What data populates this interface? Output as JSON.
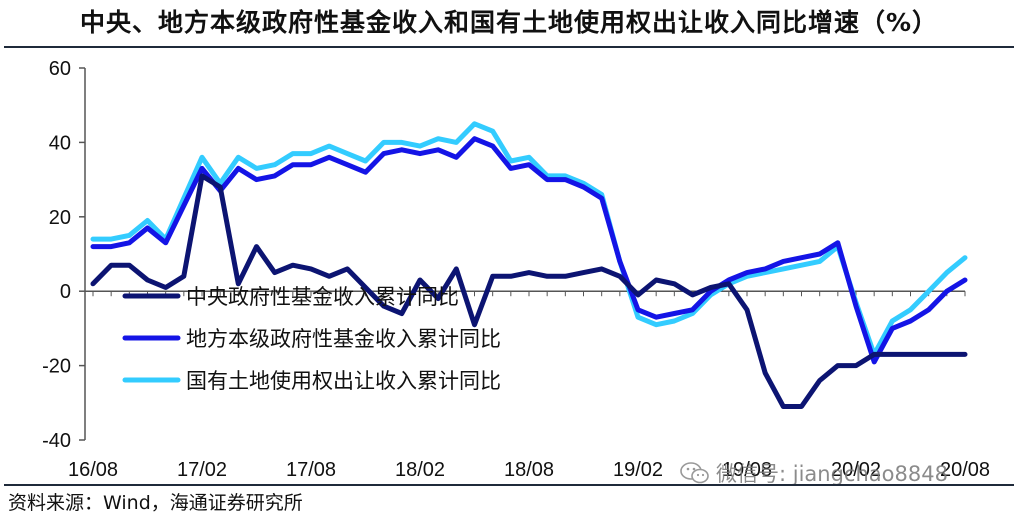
{
  "title": "中央、地方本级政府性基金收入和国有土地使用权出让收入同比增速（%）",
  "source": "资料来源：Wind，海通证券研究所",
  "watermark": "微信号: jiangchao8848",
  "chart_data": {
    "type": "line",
    "ylim": [
      -40,
      60
    ],
    "yticks": [
      60,
      40,
      20,
      0,
      -20,
      -40
    ],
    "xticks": [
      "16/08",
      "17/02",
      "17/08",
      "18/02",
      "18/08",
      "19/02",
      "19/08",
      "20/02",
      "20/08"
    ],
    "x": [
      "16/08",
      "16/09",
      "16/10",
      "16/11",
      "16/12",
      "17/01",
      "17/02",
      "17/03",
      "17/04",
      "17/05",
      "17/06",
      "17/07",
      "17/08",
      "17/09",
      "17/10",
      "17/11",
      "17/12",
      "18/01",
      "18/02",
      "18/03",
      "18/04",
      "18/05",
      "18/06",
      "18/07",
      "18/08",
      "18/09",
      "18/10",
      "18/11",
      "18/12",
      "19/01",
      "19/02",
      "19/03",
      "19/04",
      "19/05",
      "19/06",
      "19/07",
      "19/08",
      "19/09",
      "19/10",
      "19/11",
      "19/12",
      "20/01",
      "20/02",
      "20/03",
      "20/04",
      "20/05",
      "20/06",
      "20/07",
      "20/08"
    ],
    "legend_position": "bottom-left-inside",
    "series": [
      {
        "name": "中央政府性基金收入累计同比",
        "color": "#0c1472",
        "values": [
          2,
          7,
          7,
          3,
          1,
          4,
          31,
          28,
          2,
          12,
          5,
          7,
          6,
          4,
          6,
          1,
          -4,
          -6,
          3,
          -2,
          6,
          -9,
          4,
          4,
          5,
          4,
          4,
          5,
          6,
          4,
          -1,
          3,
          2,
          -1,
          1,
          2,
          -5,
          -22,
          -31,
          -31,
          -24,
          -20,
          -20,
          -17,
          -17,
          -17,
          -17,
          -17,
          -17
        ]
      },
      {
        "name": "地方本级政府性基金收入累计同比",
        "color": "#1414e6",
        "values": [
          12,
          12,
          13,
          17,
          13,
          23,
          33,
          27,
          33,
          30,
          31,
          34,
          34,
          36,
          34,
          32,
          37,
          38,
          37,
          38,
          36,
          41,
          39,
          33,
          34,
          30,
          30,
          28,
          25,
          8,
          -5,
          -7,
          -6,
          -5,
          0,
          3,
          5,
          6,
          8,
          9,
          10,
          13,
          -4,
          -19,
          -10,
          -8,
          -5,
          0,
          3
        ]
      },
      {
        "name": "国有土地使用权出让收入累计同比",
        "color": "#33ccff",
        "values": [
          14,
          14,
          15,
          19,
          14,
          25,
          36,
          29,
          36,
          33,
          34,
          37,
          37,
          39,
          37,
          35,
          40,
          40,
          39,
          41,
          40,
          45,
          43,
          35,
          36,
          31,
          31,
          29,
          26,
          8,
          -7,
          -9,
          -8,
          -6,
          -1,
          2,
          4,
          5,
          6,
          7,
          8,
          12,
          -3,
          -17,
          -8,
          -5,
          0,
          5,
          9
        ]
      }
    ]
  }
}
